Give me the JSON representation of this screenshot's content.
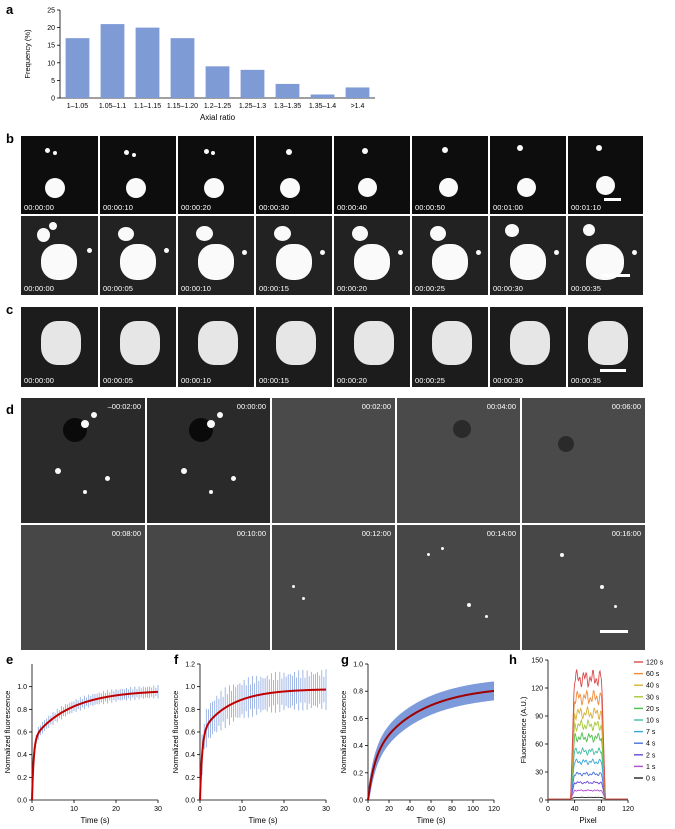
{
  "panel_labels": {
    "a": "a",
    "b": "b",
    "c": "c",
    "d": "d",
    "e": "e",
    "f": "f",
    "g": "g",
    "h": "h"
  },
  "chart_data": [
    {
      "id": "a",
      "type": "bar",
      "categories": [
        "1–1.05",
        "1.05–1.1",
        "1.1–1.15",
        "1.15–1.20",
        "1.2–1.25",
        "1.25–1.3",
        "1.3–1.35",
        "1.35–1.4",
        ">1.4"
      ],
      "values": [
        17,
        21,
        20,
        17,
        9,
        8,
        4,
        1,
        3
      ],
      "xlabel": "Axial ratio",
      "ylabel": "Frequency (%)",
      "ylim": [
        0,
        25
      ],
      "yticks": [
        0,
        5,
        10,
        15,
        20,
        25
      ],
      "color": "#7f9bd6"
    },
    {
      "id": "e",
      "type": "line",
      "xlabel": "Time (s)",
      "ylabel": "Normalized fluorescence",
      "xlim": [
        0,
        30
      ],
      "ylim": [
        0,
        1.2
      ],
      "xticks": [
        0,
        10,
        20,
        30
      ],
      "yticks": [
        0,
        0.2,
        0.4,
        0.6,
        0.8,
        1.0
      ],
      "curve": {
        "plateau": 0.97,
        "fast_fraction": 0.55,
        "fast_tau": 0.4,
        "slow_tau": 9
      },
      "error_amplitude": 0.06,
      "data_color": "#8aa6e0",
      "fit_color": "#c00000"
    },
    {
      "id": "f",
      "type": "line",
      "xlabel": "Time (s)",
      "ylabel": "Normalized fluorescence",
      "xlim": [
        0,
        30
      ],
      "ylim": [
        0,
        1.2
      ],
      "xticks": [
        0,
        10,
        20,
        30
      ],
      "yticks": [
        0,
        0.2,
        0.4,
        0.6,
        0.8,
        1.0,
        1.2
      ],
      "curve": {
        "plateau": 0.98,
        "fast_fraction": 0.6,
        "fast_tau": 0.5,
        "slow_tau": 7
      },
      "error_amplitude": 0.18,
      "data_color": "#8aa6e0",
      "fit_color": "#c00000"
    },
    {
      "id": "g",
      "type": "line",
      "xlabel": "Time (s)",
      "ylabel": "Normalized fluorescence",
      "xlim": [
        0,
        120
      ],
      "ylim": [
        0,
        1.0
      ],
      "xticks": [
        0,
        20,
        40,
        60,
        80,
        100,
        120
      ],
      "yticks": [
        0,
        0.2,
        0.4,
        0.6,
        0.8,
        1.0
      ],
      "curve": {
        "plateau": 0.84,
        "fast_fraction": 0.35,
        "fast_tau": 6,
        "slow_tau": 45
      },
      "error_amplitude": 0.07,
      "data_color": "#6f8fd6",
      "fit_color": "#a00000"
    },
    {
      "id": "h",
      "type": "line",
      "xlabel": "Pixel",
      "ylabel": "Fluorescence (A.U.)",
      "xlim": [
        0,
        120
      ],
      "ylim": [
        0,
        150
      ],
      "xticks": [
        0,
        40,
        80,
        120
      ],
      "yticks": [
        0,
        30,
        60,
        90,
        120,
        150
      ],
      "plateau_range": [
        40,
        80
      ],
      "series": [
        {
          "name": "120 s",
          "level": 140,
          "color": "#d94a4a"
        },
        {
          "name": "60 s",
          "level": 118,
          "color": "#f08c3a"
        },
        {
          "name": "40 s",
          "level": 100,
          "color": "#d8b23a"
        },
        {
          "name": "30 s",
          "level": 86,
          "color": "#a7c93a"
        },
        {
          "name": "20 s",
          "level": 72,
          "color": "#4cbf4c"
        },
        {
          "name": "10 s",
          "level": 56,
          "color": "#3cbfa6"
        },
        {
          "name": "7 s",
          "level": 44,
          "color": "#3aa7d8"
        },
        {
          "name": "4 s",
          "level": 30,
          "color": "#4a72d9"
        },
        {
          "name": "2 s",
          "level": 20,
          "color": "#6a4ad9"
        },
        {
          "name": "1 s",
          "level": 11,
          "color": "#b04ad0"
        },
        {
          "name": "0 s",
          "level": 3,
          "color": "#222222"
        }
      ],
      "legend_position": "right"
    }
  ],
  "micrographs": {
    "b1": [
      "00:00:00",
      "00:00:10",
      "00:00:20",
      "00:00:30",
      "00:00:40",
      "00:00:50",
      "00:01:00",
      "00:01:10"
    ],
    "b2": [
      "00:00:00",
      "00:00:05",
      "00:00:10",
      "00:00:15",
      "00:00:20",
      "00:00:25",
      "00:00:30",
      "00:00:35"
    ],
    "c": [
      "00:00:00",
      "00:00:05",
      "00:00:10",
      "00:00:15",
      "00:00:20",
      "00:00:25",
      "00:00:30",
      "00:00:35"
    ],
    "d1": [
      "–00:02:00",
      "00:00:00",
      "00:02:00",
      "00:04:00",
      "00:06:00"
    ],
    "d2": [
      "00:08:00",
      "00:10:00",
      "00:12:00",
      "00:14:00",
      "00:16:00"
    ]
  }
}
